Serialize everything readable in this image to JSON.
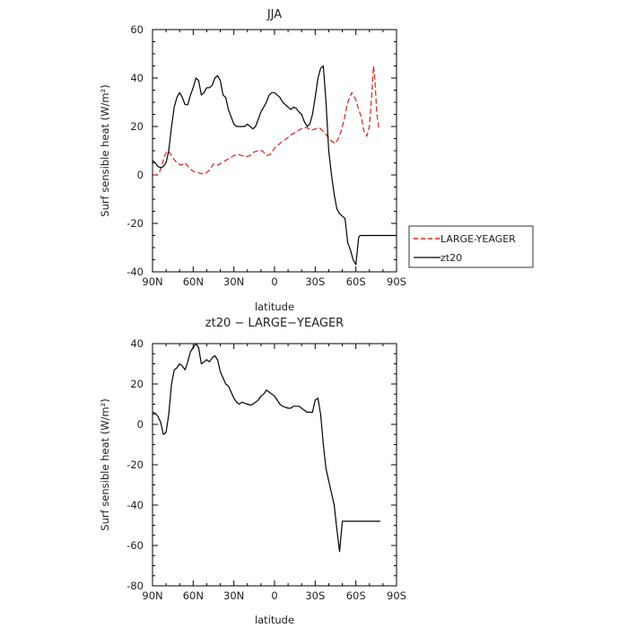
{
  "chart_data": [
    {
      "type": "line",
      "title": "JJA",
      "xlabel": "latitude",
      "ylabel": "Surf sensible heat (W/m²)",
      "xlim": [
        90,
        -90
      ],
      "ylim": [
        -40,
        60
      ],
      "x_ticks": [
        90,
        60,
        30,
        0,
        -30,
        -60,
        -90
      ],
      "x_tick_labels": [
        "90N",
        "60N",
        "30N",
        "0",
        "30S",
        "60S",
        "90S"
      ],
      "y_ticks": [
        -40,
        -20,
        0,
        20,
        40,
        60
      ],
      "y_tick_labels": [
        "-40",
        "-20",
        "0",
        "20",
        "40",
        "60"
      ],
      "legend_placement": "right",
      "series": [
        {
          "name": "LARGE-YEAGER",
          "color": "#e0201b",
          "dash": "dashed",
          "x": [
            90,
            87,
            85,
            83,
            81,
            79,
            77,
            75,
            72,
            69,
            66,
            63,
            60,
            57,
            54,
            51,
            48,
            45,
            42,
            39,
            36,
            33,
            30,
            27,
            24,
            21,
            18,
            15,
            12,
            9,
            6,
            3,
            0,
            -3,
            -6,
            -9,
            -12,
            -15,
            -18,
            -21,
            -24,
            -27,
            -30,
            -33,
            -36,
            -39,
            -42,
            -45,
            -48,
            -51,
            -54,
            -57,
            -60,
            -62,
            -64,
            -66,
            -68,
            -70,
            -72,
            -73,
            -74,
            -75.5,
            -77
          ],
          "y": [
            0,
            0,
            1,
            4,
            8,
            10,
            9,
            7,
            5,
            4,
            5,
            3,
            1.5,
            1,
            0.5,
            0.5,
            2,
            4.5,
            4,
            5,
            6,
            7,
            8,
            8.5,
            8,
            7.5,
            8,
            9.5,
            10,
            10,
            8,
            8.5,
            11,
            12.5,
            14,
            15,
            16.5,
            17.5,
            18.5,
            19.5,
            19.5,
            18.5,
            19,
            19.5,
            18,
            16,
            14,
            13,
            16,
            22,
            30,
            34,
            31,
            27,
            24,
            18,
            16,
            20,
            35,
            45,
            40,
            25,
            19
          ]
        },
        {
          "name": "zt20",
          "color": "#000000",
          "dash": "solid",
          "x": [
            90,
            88,
            86,
            84,
            82,
            80,
            78,
            76,
            74,
            72,
            70,
            68,
            66,
            64,
            62,
            60,
            58,
            56,
            54,
            52,
            50,
            48,
            46,
            44,
            42,
            40,
            38,
            36,
            34,
            32,
            30,
            28,
            26,
            24,
            22,
            20,
            18,
            16,
            14,
            12,
            10,
            8,
            6,
            4,
            2,
            0,
            -2,
            -4,
            -6,
            -8,
            -10,
            -12,
            -14,
            -16,
            -18,
            -20,
            -22,
            -24,
            -26,
            -28,
            -30,
            -32,
            -34,
            -36,
            -38,
            -40,
            -42,
            -44,
            -46,
            -48,
            -50,
            -52,
            -54,
            -56,
            -58,
            -60,
            -62,
            -63,
            -64,
            -66,
            -68,
            -70,
            -72,
            -74,
            -76,
            -78,
            -80,
            -82,
            -84,
            -86,
            -88,
            -90
          ],
          "y": [
            6,
            5,
            3.5,
            3,
            3.5,
            5,
            10,
            20,
            28,
            32,
            34,
            32,
            29,
            29,
            33,
            36,
            40,
            39,
            33,
            34,
            36,
            36,
            37,
            40,
            41,
            39,
            33,
            32,
            27,
            24,
            21,
            20,
            20,
            20,
            20,
            21,
            20,
            19,
            20,
            23,
            26,
            28,
            30,
            33,
            34,
            34,
            33,
            32,
            30,
            29,
            28,
            27,
            28,
            27.5,
            26,
            25,
            22,
            20,
            21,
            25,
            32,
            40,
            44,
            45,
            30,
            10,
            0,
            -8,
            -14,
            -16,
            -17,
            -18,
            -28,
            -31,
            -35,
            -37,
            -26,
            -25,
            -25,
            -25,
            -25,
            -25,
            -25,
            -25,
            -25,
            -25,
            -25,
            -25,
            -25,
            -25,
            -25,
            -25
          ]
        }
      ]
    },
    {
      "type": "line",
      "title": "zt20 − LARGE−YEAGER",
      "xlabel": "latitude",
      "ylabel": "Surf sensible heat (W/m²)",
      "xlim": [
        90,
        -90
      ],
      "ylim": [
        -80,
        40
      ],
      "x_ticks": [
        90,
        60,
        30,
        0,
        -30,
        -60,
        -90
      ],
      "x_tick_labels": [
        "90N",
        "60N",
        "30N",
        "0",
        "30S",
        "60S",
        "90S"
      ],
      "y_ticks": [
        -80,
        -60,
        -40,
        -20,
        0,
        20,
        40
      ],
      "y_tick_labels": [
        "-80",
        "-60",
        "-40",
        "-20",
        "0",
        "20",
        "40"
      ],
      "series": [
        {
          "name": "zt20 − LARGE−YEAGER",
          "color": "#000000",
          "dash": "solid",
          "x": [
            90,
            88,
            86,
            84,
            82,
            80,
            78,
            76,
            74,
            72,
            70,
            68,
            66,
            64,
            62,
            60,
            58,
            56,
            54,
            52,
            50,
            48,
            46,
            44,
            42,
            40,
            38,
            36,
            34,
            32,
            30,
            28,
            26,
            24,
            22,
            20,
            18,
            16,
            14,
            12,
            10,
            8,
            6,
            4,
            2,
            0,
            -2,
            -4,
            -6,
            -8,
            -10,
            -12,
            -14,
            -16,
            -18,
            -20,
            -22,
            -24,
            -26,
            -28,
            -30,
            -32,
            -34,
            -36,
            -38,
            -40,
            -42,
            -44,
            -46,
            -48,
            -50,
            -52,
            -54,
            -56,
            -58,
            -60,
            -61,
            -62,
            -63,
            -64,
            -65,
            -66,
            -67,
            -68,
            -69,
            -70,
            -71,
            -72,
            -73,
            -74,
            -75,
            -76,
            -77,
            -78
          ],
          "y": [
            6,
            5.5,
            4,
            1,
            -5,
            -4,
            5,
            20,
            27,
            28,
            30,
            29,
            27,
            31,
            36,
            38,
            40,
            38,
            30,
            31,
            32,
            31,
            33,
            34,
            32,
            26,
            23,
            20,
            19,
            16,
            13,
            11,
            10,
            11,
            10.5,
            10,
            9.5,
            10,
            11,
            12,
            14,
            15,
            17,
            16,
            15,
            14,
            12,
            10,
            9,
            8.5,
            8,
            8,
            9,
            9,
            9,
            8,
            7,
            6,
            6,
            6,
            12,
            13,
            5,
            -10,
            -22,
            -28,
            -34,
            -40,
            -52,
            -63,
            -48,
            -48,
            -48,
            -48,
            -48,
            -48,
            -48,
            -48,
            -48,
            -48,
            -48,
            -48,
            -48,
            -48,
            -48,
            -48,
            -48,
            -48,
            -48,
            -48,
            -48,
            -48,
            -48,
            -48
          ]
        }
      ]
    }
  ]
}
